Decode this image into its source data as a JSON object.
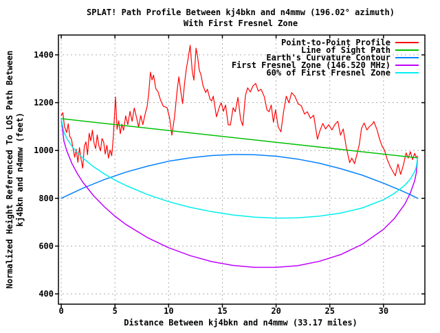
{
  "title": {
    "line1": "SPLAT! Path Profile Between kj4bkn and n4mmw (196.02° azimuth)",
    "line2": "With First Fresnel Zone"
  },
  "axes": {
    "x_label": "Distance Between kj4bkn and n4mmw (33.17 miles)",
    "y_label_line1": "Normalized Height Referenced To LOS Path Between",
    "y_label_line2": "kj4bkn and n4mmw (feet)"
  },
  "colors": {
    "background": "#ffffff",
    "border": "#000000",
    "grid": "#aaaaaa",
    "text": "#000000"
  },
  "chart_data": {
    "type": "line",
    "title": "SPLAT! Path Profile Between kj4bkn and n4mmw (196.02° azimuth) With First Fresnel Zone",
    "xlabel": "Distance Between kj4bkn and n4mmw (33.17 miles)",
    "ylabel": "Normalized Height Referenced To LOS Path Between kj4bkn and n4mmw (feet)",
    "x_ticks": [
      0,
      5,
      10,
      15,
      20,
      25,
      30
    ],
    "y_ticks": [
      400,
      600,
      800,
      1000,
      1200,
      1400
    ],
    "xlim": [
      -0.26,
      33.85
    ],
    "ylim": [
      357,
      1483
    ],
    "grid": true,
    "legend_position": "top-right-inside",
    "path_distance_miles": 33.17,
    "frequency_mhz": 146.52,
    "series": [
      {
        "name": "Point-to-Point Profile",
        "color": "#ff0000",
        "points": [
          [
            0,
            1146
          ],
          [
            0.15,
            1158
          ],
          [
            0.3,
            1100
          ],
          [
            0.5,
            1075
          ],
          [
            0.65,
            1112
          ],
          [
            0.8,
            1058
          ],
          [
            0.95,
            1048
          ],
          [
            1.1,
            1008
          ],
          [
            1.25,
            972
          ],
          [
            1.4,
            1005
          ],
          [
            1.55,
            950
          ],
          [
            1.7,
            1012
          ],
          [
            1.85,
            962
          ],
          [
            2,
            926
          ],
          [
            2.15,
            1018
          ],
          [
            2.3,
            1036
          ],
          [
            2.45,
            982
          ],
          [
            2.6,
            1072
          ],
          [
            2.75,
            1040
          ],
          [
            2.9,
            1085
          ],
          [
            3.05,
            1032
          ],
          [
            3.2,
            1008
          ],
          [
            3.35,
            1065
          ],
          [
            3.5,
            1020
          ],
          [
            3.65,
            998
          ],
          [
            3.8,
            1050
          ],
          [
            3.95,
            1035
          ],
          [
            4.1,
            985
          ],
          [
            4.25,
            1022
          ],
          [
            4.4,
            968
          ],
          [
            4.55,
            1002
          ],
          [
            4.7,
            978
          ],
          [
            4.85,
            1055
          ],
          [
            5.05,
            1224
          ],
          [
            5.2,
            1088
          ],
          [
            5.35,
            1124
          ],
          [
            5.5,
            1070
          ],
          [
            5.65,
            1110
          ],
          [
            5.8,
            1084
          ],
          [
            6,
            1145
          ],
          [
            6.2,
            1108
          ],
          [
            6.4,
            1164
          ],
          [
            6.6,
            1122
          ],
          [
            6.8,
            1178
          ],
          [
            7,
            1140
          ],
          [
            7.2,
            1098
          ],
          [
            7.4,
            1146
          ],
          [
            7.6,
            1108
          ],
          [
            7.8,
            1150
          ],
          [
            8,
            1185
          ],
          [
            8.15,
            1240
          ],
          [
            8.3,
            1328
          ],
          [
            8.45,
            1295
          ],
          [
            8.6,
            1315
          ],
          [
            8.8,
            1258
          ],
          [
            9,
            1247
          ],
          [
            9.25,
            1210
          ],
          [
            9.5,
            1185
          ],
          [
            9.85,
            1179
          ],
          [
            10.1,
            1133
          ],
          [
            10.3,
            1064
          ],
          [
            10.55,
            1141
          ],
          [
            10.8,
            1255
          ],
          [
            10.95,
            1308
          ],
          [
            11.15,
            1240
          ],
          [
            11.3,
            1196
          ],
          [
            11.5,
            1290
          ],
          [
            11.65,
            1343
          ],
          [
            11.8,
            1380
          ],
          [
            12,
            1440
          ],
          [
            12.2,
            1330
          ],
          [
            12.35,
            1294
          ],
          [
            12.55,
            1428
          ],
          [
            12.7,
            1390
          ],
          [
            12.85,
            1335
          ],
          [
            13,
            1318
          ],
          [
            13.2,
            1271
          ],
          [
            13.45,
            1242
          ],
          [
            13.6,
            1256
          ],
          [
            13.85,
            1215
          ],
          [
            14,
            1207
          ],
          [
            14.15,
            1227
          ],
          [
            14.45,
            1141
          ],
          [
            14.75,
            1185
          ],
          [
            14.9,
            1199
          ],
          [
            15.1,
            1164
          ],
          [
            15.3,
            1190
          ],
          [
            15.55,
            1107
          ],
          [
            15.75,
            1107
          ],
          [
            16,
            1179
          ],
          [
            16.2,
            1162
          ],
          [
            16.45,
            1222
          ],
          [
            16.7,
            1130
          ],
          [
            16.9,
            1104
          ],
          [
            17.15,
            1230
          ],
          [
            17.35,
            1262
          ],
          [
            17.6,
            1245
          ],
          [
            17.85,
            1270
          ],
          [
            18.1,
            1280
          ],
          [
            18.35,
            1248
          ],
          [
            18.6,
            1256
          ],
          [
            18.9,
            1225
          ],
          [
            19.15,
            1170
          ],
          [
            19.35,
            1162
          ],
          [
            19.55,
            1190
          ],
          [
            19.75,
            1118
          ],
          [
            19.95,
            1170
          ],
          [
            20.2,
            1098
          ],
          [
            20.45,
            1078
          ],
          [
            20.7,
            1162
          ],
          [
            20.95,
            1227
          ],
          [
            21.2,
            1199
          ],
          [
            21.45,
            1242
          ],
          [
            21.75,
            1227
          ],
          [
            22.05,
            1195
          ],
          [
            22.35,
            1187
          ],
          [
            22.65,
            1152
          ],
          [
            22.9,
            1162
          ],
          [
            23.2,
            1135
          ],
          [
            23.5,
            1147
          ],
          [
            23.85,
            1047
          ],
          [
            24.1,
            1085
          ],
          [
            24.35,
            1113
          ],
          [
            24.6,
            1090
          ],
          [
            24.9,
            1108
          ],
          [
            25.2,
            1086
          ],
          [
            25.5,
            1110
          ],
          [
            25.75,
            1122
          ],
          [
            26,
            1064
          ],
          [
            26.25,
            1090
          ],
          [
            26.55,
            1010
          ],
          [
            26.85,
            949
          ],
          [
            27.05,
            968
          ],
          [
            27.3,
            945
          ],
          [
            27.55,
            988
          ],
          [
            27.75,
            1026
          ],
          [
            27.95,
            1092
          ],
          [
            28.2,
            1115
          ],
          [
            28.45,
            1086
          ],
          [
            28.7,
            1100
          ],
          [
            28.95,
            1110
          ],
          [
            29.1,
            1121
          ],
          [
            29.4,
            1086
          ],
          [
            29.6,
            1052
          ],
          [
            29.85,
            1020
          ],
          [
            30.1,
            1000
          ],
          [
            30.35,
            962
          ],
          [
            30.65,
            930
          ],
          [
            30.9,
            910
          ],
          [
            31.1,
            894
          ],
          [
            31.35,
            943
          ],
          [
            31.6,
            900
          ],
          [
            31.85,
            938
          ],
          [
            32.1,
            990
          ],
          [
            32.3,
            968
          ],
          [
            32.5,
            995
          ],
          [
            32.7,
            962
          ],
          [
            32.9,
            988
          ],
          [
            33.05,
            970
          ],
          [
            33.17,
            977
          ]
        ]
      },
      {
        "name": "Line of Sight Path",
        "color": "#00c000",
        "points": [
          [
            0,
            1133
          ],
          [
            33.17,
            969
          ]
        ]
      },
      {
        "name": "Earth's Curvature Contour",
        "color": "#0080ff",
        "points": [
          [
            0,
            800
          ],
          [
            2,
            842
          ],
          [
            4,
            878
          ],
          [
            6,
            909
          ],
          [
            8,
            934
          ],
          [
            10,
            955
          ],
          [
            12,
            969
          ],
          [
            14,
            979
          ],
          [
            16,
            983
          ],
          [
            16.6,
            983
          ],
          [
            18,
            982
          ],
          [
            20,
            976
          ],
          [
            22,
            964
          ],
          [
            24,
            947
          ],
          [
            26,
            924
          ],
          [
            28,
            897
          ],
          [
            30,
            863
          ],
          [
            31.5,
            835
          ],
          [
            32.5,
            815
          ],
          [
            33.17,
            800
          ]
        ]
      },
      {
        "name": "First Fresnel Zone (146.520 MHz)",
        "color": "#c000ff",
        "points": [
          [
            0,
            1133
          ],
          [
            0.25,
            1039
          ],
          [
            0.5,
            1000
          ],
          [
            1,
            945
          ],
          [
            1.5,
            903
          ],
          [
            2,
            868
          ],
          [
            3,
            811
          ],
          [
            4,
            765
          ],
          [
            5,
            725
          ],
          [
            6,
            691
          ],
          [
            8,
            636
          ],
          [
            10,
            593
          ],
          [
            12,
            560
          ],
          [
            14,
            535
          ],
          [
            16,
            519
          ],
          [
            18,
            511
          ],
          [
            20,
            511
          ],
          [
            22,
            518
          ],
          [
            24,
            536
          ],
          [
            26,
            564
          ],
          [
            28,
            607
          ],
          [
            30,
            670
          ],
          [
            31,
            715
          ],
          [
            32,
            777
          ],
          [
            32.5,
            822
          ],
          [
            32.9,
            874
          ],
          [
            33.05,
            906
          ],
          [
            33.17,
            969
          ]
        ]
      },
      {
        "name": "60% of First Fresnel Zone",
        "color": "#00eeee",
        "points": [
          [
            0,
            1133
          ],
          [
            0.25,
            1076
          ],
          [
            0.5,
            1052
          ],
          [
            1,
            1017
          ],
          [
            1.5,
            991
          ],
          [
            2,
            969
          ],
          [
            3,
            932
          ],
          [
            4,
            902
          ],
          [
            5,
            876
          ],
          [
            6,
            854
          ],
          [
            8,
            816
          ],
          [
            10,
            786
          ],
          [
            12,
            762
          ],
          [
            14,
            744
          ],
          [
            16,
            730
          ],
          [
            18,
            721
          ],
          [
            20,
            717
          ],
          [
            22,
            718
          ],
          [
            24,
            725
          ],
          [
            26,
            738
          ],
          [
            28,
            759
          ],
          [
            30,
            794
          ],
          [
            31,
            820
          ],
          [
            32,
            855
          ],
          [
            32.5,
            881
          ],
          [
            32.9,
            912
          ],
          [
            33.05,
            931
          ],
          [
            33.17,
            969
          ]
        ]
      }
    ]
  }
}
